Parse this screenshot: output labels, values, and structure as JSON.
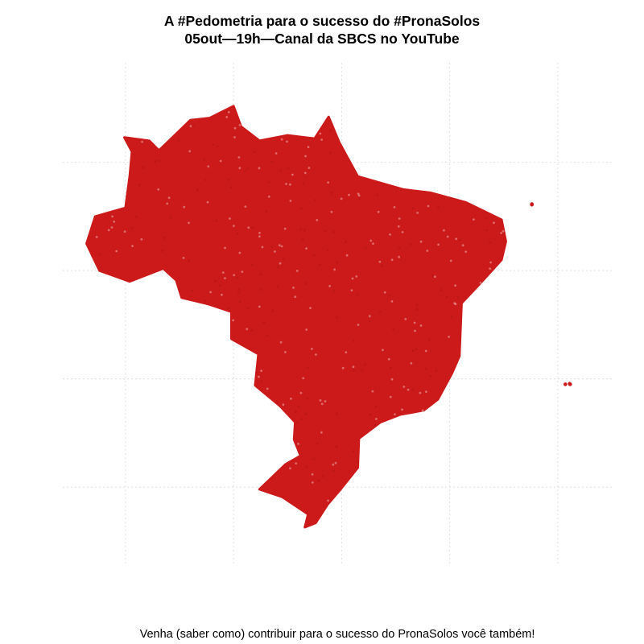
{
  "chart_data": {
    "type": "scatter",
    "title": [
      "A #Pedometria para o sucesso do #PronaSolos",
      "05out—19h—Canal da SBCS no YouTube"
    ],
    "caption": "Venha (saber como) contribuir para o sucesso do PronaSolos você também!",
    "axes_visible": false,
    "grid": true,
    "grid_color": "#d9d9d9",
    "point_color": "#cc1a1a",
    "x_gridlines": [
      -70,
      -60,
      -50,
      -40,
      -30
    ],
    "y_gridlines": [
      0,
      -10,
      -20,
      -30
    ],
    "xlim": [
      -75.8,
      -25.0
    ],
    "ylim": [
      -37.2,
      9.2
    ],
    "series": [
      {
        "points": [
          [
            -29.3,
            -20.5
          ],
          [
            -32.4,
            -3.85
          ],
          [
            -32.4,
            -3.9
          ],
          [
            -28.9,
            -20.45
          ],
          [
            -28.85,
            -20.5
          ]
        ]
      }
    ]
  }
}
